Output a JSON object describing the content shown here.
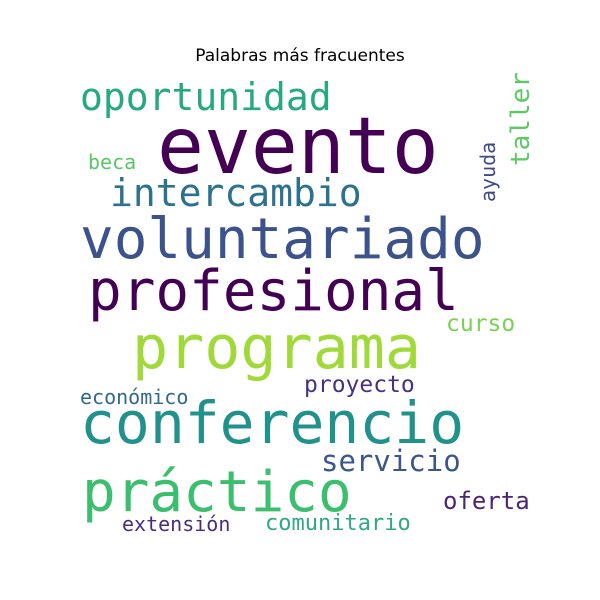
{
  "title": "Palabras más fracuentes",
  "words": [
    {
      "id": "evento",
      "text": "evento",
      "color": "#440154"
    },
    {
      "id": "voluntariado",
      "text": "voluntariado",
      "color": "#3b528b"
    },
    {
      "id": "profesional",
      "text": "profesional",
      "color": "#440154"
    },
    {
      "id": "programa",
      "text": "programa",
      "color": "#a0da39"
    },
    {
      "id": "conferencio",
      "text": "conferencio",
      "color": "#21918c"
    },
    {
      "id": "practico",
      "text": "práctico",
      "color": "#3bbf6e"
    },
    {
      "id": "oportunidad",
      "text": "oportunidad",
      "color": "#26a97f"
    },
    {
      "id": "intercambio",
      "text": "intercambio",
      "color": "#2c728e"
    },
    {
      "id": "servicio",
      "text": "servicio",
      "color": "#39578c"
    },
    {
      "id": "proyecto",
      "text": "proyecto",
      "color": "#46327e"
    },
    {
      "id": "economico",
      "text": "económico",
      "color": "#31688e"
    },
    {
      "id": "curso",
      "text": "curso",
      "color": "#7ad151"
    },
    {
      "id": "oferta",
      "text": "oferta",
      "color": "#482576"
    },
    {
      "id": "extension",
      "text": "extensión",
      "color": "#472d7b"
    },
    {
      "id": "comunitario",
      "text": "comunitario",
      "color": "#31a884"
    },
    {
      "id": "beca",
      "text": "beca",
      "color": "#58c765"
    },
    {
      "id": "taller",
      "text": "taller",
      "color": "#5ec962"
    },
    {
      "id": "ayuda",
      "text": "ayuda",
      "color": "#3e4989"
    }
  ]
}
